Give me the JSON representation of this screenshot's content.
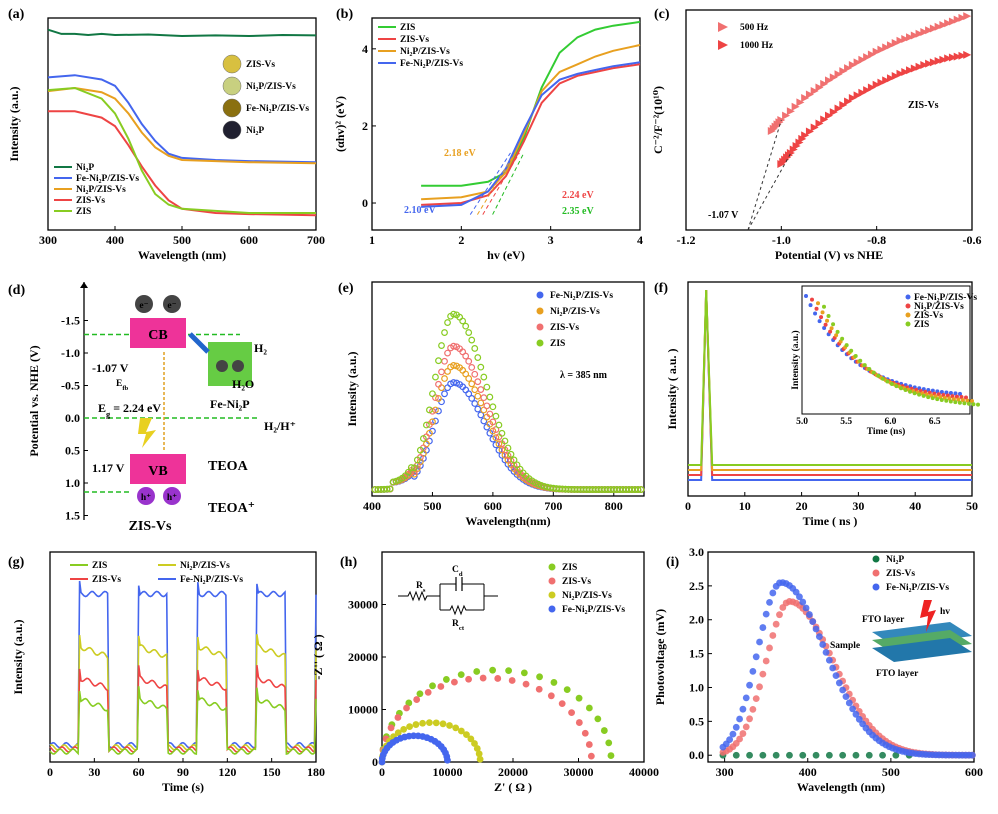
{
  "colors": {
    "green": "#33cc33",
    "red": "#ee4444",
    "orange": "#e8a020",
    "blue": "#4466ee",
    "lime": "#88cc22",
    "yellow": "#cccc22",
    "darkgreen": "#117744",
    "pink": "#f07070",
    "magenta": "#ee3399",
    "purple": "#9933cc",
    "dashgreen": "#22bb22"
  },
  "panel_labels": [
    "(a)",
    "(b)",
    "(c)",
    "(d)",
    "(e)",
    "(f)",
    "(g)",
    "(h)",
    "(i)"
  ],
  "chart_data": [
    {
      "id": "a",
      "type": "line",
      "xlabel": "Wavelength (nm)",
      "ylabel": "Intensity (a.u.)",
      "xlim": [
        300,
        700
      ],
      "ylim": [
        0,
        1
      ],
      "xticks": [
        "300",
        "400",
        "500",
        "600",
        "700"
      ],
      "legend": [
        "Ni₂P",
        "Fe-Ni₂P/ZIS-Vs",
        "Ni₂P/ZIS-Vs",
        "ZIS-Vs",
        "ZIS"
      ],
      "insets": [
        "ZIS-Vs",
        "Ni₂P/ZIS-Vs",
        "Fe-Ni₂P/ZIS-Vs",
        "Ni₂P"
      ],
      "series": [
        {
          "name": "Ni₂P",
          "x": [
            300,
            320,
            340,
            360,
            380,
            400,
            450,
            500,
            550,
            600,
            650,
            700
          ],
          "y": [
            0.945,
            0.925,
            0.925,
            0.92,
            0.925,
            0.92,
            0.922,
            0.915,
            0.918,
            0.915,
            0.92,
            0.918
          ]
        },
        {
          "name": "Fe-Ni₂P/ZIS-Vs",
          "x": [
            300,
            340,
            380,
            400,
            420,
            440,
            460,
            480,
            500,
            550,
            600,
            700
          ],
          "y": [
            0.72,
            0.73,
            0.71,
            0.68,
            0.6,
            0.5,
            0.42,
            0.36,
            0.34,
            0.33,
            0.325,
            0.32
          ]
        },
        {
          "name": "Ni₂P/ZIS-Vs",
          "x": [
            300,
            340,
            380,
            400,
            420,
            440,
            460,
            480,
            500,
            550,
            600,
            700
          ],
          "y": [
            0.655,
            0.67,
            0.65,
            0.62,
            0.55,
            0.46,
            0.39,
            0.35,
            0.33,
            0.325,
            0.32,
            0.315
          ]
        },
        {
          "name": "ZIS-Vs",
          "x": [
            300,
            340,
            380,
            400,
            420,
            440,
            460,
            480,
            500,
            550,
            600,
            700
          ],
          "y": [
            0.56,
            0.56,
            0.53,
            0.49,
            0.4,
            0.3,
            0.21,
            0.14,
            0.1,
            0.08,
            0.075,
            0.07
          ]
        },
        {
          "name": "ZIS",
          "x": [
            300,
            340,
            380,
            400,
            420,
            440,
            460,
            480,
            500,
            550,
            600,
            700
          ],
          "y": [
            0.66,
            0.67,
            0.62,
            0.55,
            0.43,
            0.28,
            0.17,
            0.12,
            0.1,
            0.09,
            0.08,
            0.08
          ]
        }
      ]
    },
    {
      "id": "b",
      "type": "line",
      "xlabel": "hv (eV)",
      "ylabel": "(αhv)² (eV)",
      "xlim": [
        1,
        4
      ],
      "ylim": [
        -0.7,
        4.8
      ],
      "xticks": [
        "1",
        "2",
        "3",
        "4"
      ],
      "yticks": [
        "0",
        "2",
        "4"
      ],
      "legend": [
        "ZIS",
        "ZIS-Vs",
        "Ni₂P/ZIS-Vs",
        "Fe-Ni₂P/ZIS-Vs"
      ],
      "annotations": [
        "2.18 eV",
        "2.24 eV",
        "2.10 eV",
        "2.35 eV"
      ],
      "series": [
        {
          "name": "ZIS",
          "x": [
            1.55,
            2.0,
            2.3,
            2.5,
            2.7,
            2.9,
            3.1,
            3.3,
            3.5,
            3.7,
            4.0
          ],
          "y": [
            0.45,
            0.45,
            0.55,
            0.8,
            1.7,
            3.0,
            3.9,
            4.3,
            4.5,
            4.6,
            4.7
          ]
        },
        {
          "name": "ZIS-Vs",
          "x": [
            1.55,
            2.0,
            2.3,
            2.5,
            2.7,
            2.9,
            3.1,
            3.3,
            3.5,
            3.7,
            4.0
          ],
          "y": [
            -0.05,
            0.0,
            0.2,
            0.7,
            1.6,
            2.6,
            3.1,
            3.3,
            3.4,
            3.5,
            3.6
          ]
        },
        {
          "name": "Ni₂P/ZIS-Vs",
          "x": [
            1.55,
            2.0,
            2.3,
            2.5,
            2.7,
            2.9,
            3.1,
            3.3,
            3.5,
            3.7,
            4.0
          ],
          "y": [
            0.1,
            0.15,
            0.3,
            0.8,
            1.8,
            2.9,
            3.4,
            3.6,
            3.8,
            3.95,
            4.1
          ]
        },
        {
          "name": "Fe-Ni₂P/ZIS-Vs",
          "x": [
            1.55,
            2.0,
            2.3,
            2.5,
            2.7,
            2.9,
            3.1,
            3.3,
            3.5,
            3.7,
            4.0
          ],
          "y": [
            -0.1,
            -0.05,
            0.3,
            0.9,
            1.9,
            2.8,
            3.2,
            3.35,
            3.45,
            3.55,
            3.65
          ]
        }
      ]
    },
    {
      "id": "c",
      "type": "scatter",
      "xlabel": "Potential (V) vs NHE",
      "ylabel": "C⁻²/F⁻²(10¹⁰)",
      "xlim": [
        -1.2,
        -0.6
      ],
      "xticks": [
        "-1.2",
        "-1.0",
        "-0.8",
        "-0.6"
      ],
      "legend": [
        "500 Hz",
        "1000 Hz"
      ],
      "annotations": [
        "ZIS-Vs",
        "-1.07 V"
      ],
      "series": [
        {
          "name": "500 Hz",
          "x": [
            -1.02,
            -1.0,
            -0.95,
            -0.9,
            -0.85,
            -0.8,
            -0.75,
            -0.7,
            -0.65,
            -0.6
          ],
          "y": [
            0.45,
            0.5,
            0.6,
            0.68,
            0.75,
            0.81,
            0.86,
            0.9,
            0.94,
            0.98
          ]
        },
        {
          "name": "1000 Hz",
          "x": [
            -1.0,
            -0.98,
            -0.95,
            -0.9,
            -0.85,
            -0.8,
            -0.75,
            -0.7,
            -0.65,
            -0.6
          ],
          "y": [
            0.3,
            0.35,
            0.43,
            0.52,
            0.6,
            0.66,
            0.71,
            0.75,
            0.78,
            0.8
          ]
        }
      ]
    },
    {
      "id": "e",
      "type": "line",
      "xlabel": "Wavelength(nm)",
      "ylabel": "Intensity (a.u.)",
      "xlim": [
        400,
        850
      ],
      "xticks": [
        "400",
        "500",
        "600",
        "700",
        "800"
      ],
      "legend": [
        "Fe-Ni₂P/ZIS-Vs",
        "Ni₂P/ZIS-Vs",
        "ZIS-Vs",
        "ZIS"
      ],
      "annotation": "λ = 385 nm",
      "series": [
        {
          "name": "Fe-Ni₂P/ZIS-Vs",
          "peak": 0.5
        },
        {
          "name": "Ni₂P/ZIS-Vs",
          "peak": 0.58
        },
        {
          "name": "ZIS-Vs",
          "peak": 0.67
        },
        {
          "name": "ZIS",
          "peak": 0.82
        }
      ]
    },
    {
      "id": "f",
      "type": "line",
      "xlabel": "Time ( ns )",
      "ylabel": "Intensity ( a.u. )",
      "xlim": [
        0,
        50
      ],
      "xticks": [
        "0",
        "10",
        "20",
        "30",
        "40",
        "50"
      ],
      "legend": [
        "Fe-Ni₂P/ZIS-Vs",
        "Ni₂P/ZIS-Vs",
        "ZIS-Vs",
        "ZIS"
      ],
      "inset": {
        "xlabel": "Time (ns)",
        "ylabel": "Intensity (a.u.)",
        "xticks": [
          "5.0",
          "5.5",
          "6.0",
          "6.5"
        ]
      }
    },
    {
      "id": "g",
      "type": "line",
      "xlabel": "Time (s)",
      "ylabel": "Intensity (a.u.)",
      "xlim": [
        0,
        180
      ],
      "xticks": [
        "0",
        "30",
        "60",
        "90",
        "120",
        "150",
        "180"
      ],
      "legend": [
        "ZIS",
        "Ni₂P/ZIS-Vs",
        "ZIS-Vs",
        "Fe-Ni₂P/ZIS-Vs"
      ],
      "series": [
        {
          "name": "Fe-Ni₂P/ZIS-Vs",
          "on_level": 0.8
        },
        {
          "name": "Ni₂P/ZIS-Vs",
          "on_level": 0.55
        },
        {
          "name": "ZIS-Vs",
          "on_level": 0.4
        },
        {
          "name": "ZIS",
          "on_level": 0.3
        }
      ]
    },
    {
      "id": "h",
      "type": "scatter",
      "xlabel": "Z' ( Ω )",
      "ylabel": "-Z'' ( Ω )",
      "xlim": [
        0,
        40000
      ],
      "ylim": [
        0,
        40000
      ],
      "xticks": [
        "0",
        "10000",
        "20000",
        "30000",
        "40000"
      ],
      "yticks": [
        "0",
        "10000",
        "20000",
        "30000"
      ],
      "legend": [
        "ZIS",
        "ZIS-Vs",
        "Ni₂P/ZIS-Vs",
        "Fe-Ni₂P/ZIS-Vs"
      ],
      "circuit": {
        "rs": "R",
        "rs_sub": "s",
        "cd": "C",
        "cd_sub": "d",
        "rct": "R",
        "rct_sub": "ct"
      },
      "series": [
        {
          "name": "ZIS",
          "diameter": 35000
        },
        {
          "name": "ZIS-Vs",
          "diameter": 32000
        },
        {
          "name": "Ni₂P/ZIS-Vs",
          "diameter": 15000
        },
        {
          "name": "Fe-Ni₂P/ZIS-Vs",
          "diameter": 10000
        }
      ]
    },
    {
      "id": "i",
      "type": "scatter",
      "xlabel": "Wavelength (nm)",
      "ylabel": "Photovoltage (mV)",
      "xlim": [
        280,
        600
      ],
      "ylim": [
        -0.1,
        3.0
      ],
      "xticks": [
        "300",
        "400",
        "500",
        "600"
      ],
      "yticks": [
        "0.0",
        "0.5",
        "1.0",
        "1.5",
        "2.0",
        "2.5",
        "3.0"
      ],
      "legend": [
        "Ni₂P",
        "ZIS-Vs",
        "Fe-Ni₂P/ZIS-Vs"
      ],
      "inset_labels": [
        "FTO layer",
        "Sample",
        "FTO layer",
        "hv"
      ],
      "series": [
        {
          "name": "Ni₂P",
          "peak": 0
        },
        {
          "name": "ZIS-Vs",
          "peak": 2.27,
          "peak_x": 378
        },
        {
          "name": "Fe-Ni₂P/ZIS-Vs",
          "peak": 2.55,
          "peak_x": 368
        }
      ]
    }
  ],
  "diagram_d": {
    "ylabel": "Potential vs. NHE (V)",
    "yticks": [
      "-1.5",
      "-1.0",
      "-0.5",
      "0.0",
      "0.5",
      "1.0",
      "1.5"
    ],
    "cb": "CB",
    "vb": "VB",
    "electron": "e⁻",
    "hole": "h⁺",
    "cb_potential": "-1.07 V",
    "vb_potential": "1.17 V",
    "efb": "E",
    "efb_sub": "fb",
    "eg": "E",
    "eg_sub": "g",
    "eg_value": "= 2.24 eV",
    "h2": "H₂",
    "h2o": "H₂O",
    "h2h": "H₂/H⁺",
    "fe_ni2p": "Fe-Ni₂P",
    "teoa": "TEOA",
    "teoa_plus": "TEOA⁺",
    "zis_vs": "ZIS-Vs"
  }
}
